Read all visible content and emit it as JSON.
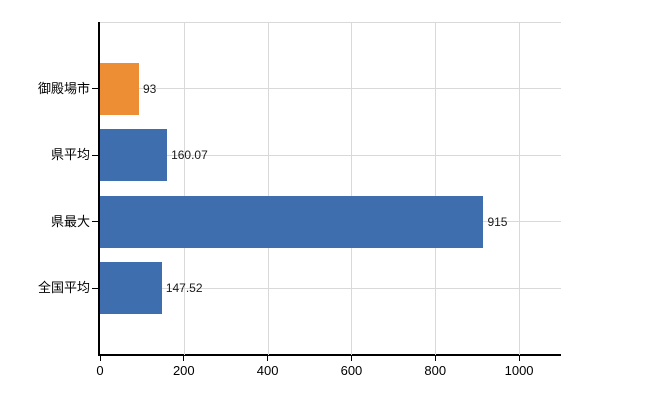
{
  "chart_data": {
    "type": "bar",
    "orientation": "horizontal",
    "title": "",
    "xlabel": "",
    "ylabel": "",
    "categories": [
      "御殿場市",
      "県平均",
      "県最大",
      "全国平均"
    ],
    "values": [
      93,
      160.07,
      915,
      147.52
    ],
    "value_labels": [
      "93",
      "160.07",
      "915",
      "147.52"
    ],
    "bar_colors": [
      "#ED8E35",
      "#3E6EAD",
      "#3E6EAD",
      "#3E6EAD"
    ],
    "xlim": [
      0,
      1100
    ],
    "xticks": [
      0,
      200,
      400,
      600,
      800,
      1000
    ],
    "xtick_labels": [
      "0",
      "200",
      "400",
      "600",
      "800",
      "1000"
    ],
    "grid": true,
    "legend": "none",
    "colors": {
      "grid": "#D9D9D9",
      "axis": "#000000",
      "text": "#000000",
      "background": "#FFFFFF"
    }
  }
}
